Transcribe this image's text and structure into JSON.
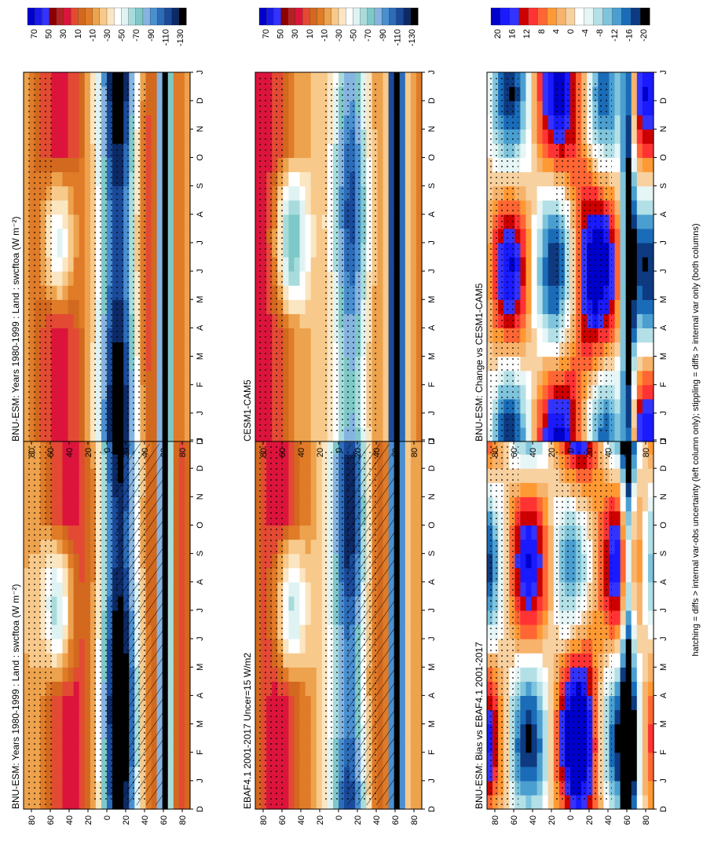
{
  "figure": {
    "footer": "hatching = diffs > internal var-obs uncertainty (left column only); stippling = diffs > internal var only (both columns)"
  },
  "chart_data": [
    {
      "type": "heatmap",
      "title": "BNU-ESM: Years 1980-1999 : Land : swcftoa (W m⁻²)",
      "x_ticks": [
        "D",
        "J",
        "F",
        "M",
        "A",
        "M",
        "J",
        "J",
        "A",
        "S",
        "O",
        "N",
        "D",
        "J"
      ],
      "y_ticks": [
        "80",
        "60",
        "40",
        "20",
        "0",
        "20",
        "40",
        "60",
        "80"
      ],
      "colorbar_ticks": [
        "70",
        "50",
        "30",
        "10",
        "-10",
        "-30",
        "-50",
        "-70",
        "-90",
        "-110",
        "-130"
      ],
      "hatching": true,
      "stippling": true
    },
    {
      "type": "heatmap",
      "title": "BNU-ESM: Years 1980-1999 : Land : swcftoa (W m⁻²)",
      "x_ticks": [
        "D",
        "J",
        "F",
        "M",
        "A",
        "M",
        "J",
        "J",
        "A",
        "S",
        "O",
        "N",
        "D",
        "J"
      ],
      "y_ticks": [
        "80",
        "60",
        "40",
        "20",
        "0",
        "20",
        "40",
        "60",
        "80"
      ],
      "colorbar_ticks": [
        "70",
        "50",
        "30",
        "10",
        "-10",
        "-30",
        "-50",
        "-70",
        "-90",
        "-110",
        "-130"
      ],
      "hatching": false,
      "stippling": true
    },
    {
      "type": "heatmap",
      "title": "EBAF4.1 2001-2017 Uncer=15 W/m2",
      "x_ticks": [
        "D",
        "J",
        "F",
        "M",
        "A",
        "M",
        "J",
        "J",
        "A",
        "S",
        "O",
        "N",
        "D",
        "J"
      ],
      "y_ticks": [
        "80",
        "60",
        "40",
        "20",
        "0",
        "20",
        "40",
        "60",
        "80"
      ],
      "colorbar_ticks": [
        "70",
        "50",
        "30",
        "10",
        "-10",
        "-30",
        "-50",
        "-70",
        "-90",
        "-110",
        "-130"
      ],
      "hatching": true,
      "stippling": true
    },
    {
      "type": "heatmap",
      "title": "CESM1-CAM5",
      "x_ticks": [
        "D",
        "J",
        "F",
        "M",
        "A",
        "M",
        "J",
        "J",
        "A",
        "S",
        "O",
        "N",
        "D",
        "J"
      ],
      "y_ticks": [
        "80",
        "60",
        "40",
        "20",
        "0",
        "20",
        "40",
        "60",
        "80"
      ],
      "colorbar_ticks": [
        "70",
        "50",
        "30",
        "10",
        "-10",
        "-30",
        "-50",
        "-70",
        "-90",
        "-110",
        "-130"
      ],
      "hatching": false,
      "stippling": true
    },
    {
      "type": "heatmap",
      "title": "BNU-ESM: Bias vs EBAF4.1 2001-2017",
      "x_ticks": [
        "D",
        "J",
        "F",
        "M",
        "A",
        "M",
        "J",
        "J",
        "A",
        "S",
        "O",
        "N",
        "D",
        "J"
      ],
      "y_ticks": [
        "80",
        "60",
        "40",
        "20",
        "0",
        "20",
        "40",
        "60",
        "80"
      ],
      "colorbar_ticks": [
        "20",
        "16",
        "12",
        "8",
        "4",
        "0",
        "-4",
        "-8",
        "-12",
        "-16",
        "-20"
      ],
      "hatching": false,
      "stippling": true
    },
    {
      "type": "heatmap",
      "title": "BNU-ESM: Change vs CESM1-CAM5",
      "x_ticks": [
        "D",
        "J",
        "F",
        "M",
        "A",
        "M",
        "J",
        "J",
        "A",
        "S",
        "O",
        "N",
        "D",
        "J"
      ],
      "y_ticks": [
        "80",
        "60",
        "40",
        "20",
        "0",
        "20",
        "40",
        "60",
        "80"
      ],
      "colorbar_ticks": [
        "20",
        "16",
        "12",
        "8",
        "4",
        "0",
        "-4",
        "-8",
        "-12",
        "-16",
        "-20"
      ],
      "hatching": false,
      "stippling": true
    }
  ],
  "palettes": {
    "absolute": [
      "#0000cc",
      "#1a1ae6",
      "#3333ff",
      "#8b0000",
      "#b22222",
      "#dc143c",
      "#e34a33",
      "#d2691e",
      "#e07b28",
      "#eda24d",
      "#f7c98b",
      "#fbe6c2",
      "#ffffff",
      "#e0f3f3",
      "#a8dcdc",
      "#7fc8c8",
      "#86b4e0",
      "#4a8fd0",
      "#2c6cb8",
      "#1a4a99",
      "#0d2a66",
      "#000000"
    ],
    "difference": [
      "#0000cc",
      "#1a1aff",
      "#3333ff",
      "#cc0000",
      "#ff3333",
      "#ff6633",
      "#ff9933",
      "#f7b36b",
      "#f7d1a0",
      "#ffffff",
      "#e6f5f5",
      "#b3e0e6",
      "#7fc4dd",
      "#4a9fd0",
      "#1a6cb8",
      "#0d3a80",
      "#000000"
    ]
  }
}
